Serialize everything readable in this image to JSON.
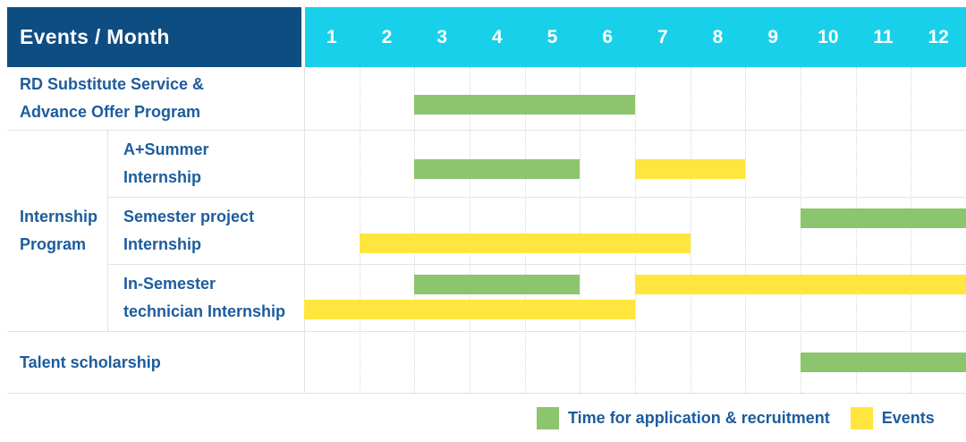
{
  "colors": {
    "header_navy": "#0e4d82",
    "header_cyan": "#18d0ea",
    "green": "#8cc56d",
    "yellow": "#ffe63e",
    "label_text": "#1d5c9d",
    "header_text": "#ffffff",
    "grid_solid": "#e2e2e2",
    "grid_dotted": "#d8d8d8"
  },
  "header": {
    "title": "Events / Month",
    "months": [
      "1",
      "2",
      "3",
      "4",
      "5",
      "6",
      "7",
      "8",
      "9",
      "10",
      "11",
      "12"
    ]
  },
  "chart_data": {
    "type": "table",
    "subtype": "gantt-timeline",
    "title": "Events / Month",
    "x_axis": {
      "unit": "month",
      "ticks": [
        "1",
        "2",
        "3",
        "4",
        "5",
        "6",
        "7",
        "8",
        "9",
        "10",
        "11",
        "12"
      ],
      "range": [
        1,
        12
      ]
    },
    "grid": true,
    "legend_position": "bottom-right",
    "rows": [
      {
        "label": "RD Substitute Service &\nAdvance Offer Program",
        "group": "",
        "bars": [
          {
            "kind": "green",
            "series": "Time for application & recruitment",
            "start_month": 3,
            "end_month": 6,
            "line": "center"
          }
        ]
      },
      {
        "label": "A+Summer\nInternship",
        "group": "Internship\nProgram",
        "bars": [
          {
            "kind": "green",
            "series": "Time for application & recruitment",
            "start_month": 3,
            "end_month": 5,
            "line": "center"
          },
          {
            "kind": "yellow",
            "series": "Events",
            "start_month": 7,
            "end_month": 8,
            "line": "center"
          }
        ]
      },
      {
        "label": "Semester project\nInternship",
        "group": "Internship\nProgram",
        "bars": [
          {
            "kind": "green",
            "series": "Time for application & recruitment",
            "start_month": 10,
            "end_month": 12,
            "line": "top"
          },
          {
            "kind": "yellow",
            "series": "Events",
            "start_month": 2,
            "end_month": 7,
            "line": "bottom"
          }
        ]
      },
      {
        "label": "In-Semester\ntechnician Internship",
        "group": "Internship\nProgram",
        "bars": [
          {
            "kind": "green",
            "series": "Time for application & recruitment",
            "start_month": 3,
            "end_month": 5,
            "line": "top"
          },
          {
            "kind": "yellow",
            "series": "Events",
            "start_month": 7,
            "end_month": 12,
            "line": "top"
          },
          {
            "kind": "yellow",
            "series": "Events",
            "start_month": 1,
            "end_month": 6,
            "line": "bottom"
          }
        ]
      },
      {
        "label": "Talent scholarship",
        "group": "",
        "bars": [
          {
            "kind": "green",
            "series": "Time for application & recruitment",
            "start_month": 10,
            "end_month": 12,
            "line": "center"
          }
        ]
      }
    ]
  },
  "legend": {
    "items": [
      {
        "label": "Time for application & recruitment",
        "kind": "green",
        "color": "#8cc56d"
      },
      {
        "label": "Events",
        "kind": "yellow",
        "color": "#ffe63e"
      }
    ]
  }
}
